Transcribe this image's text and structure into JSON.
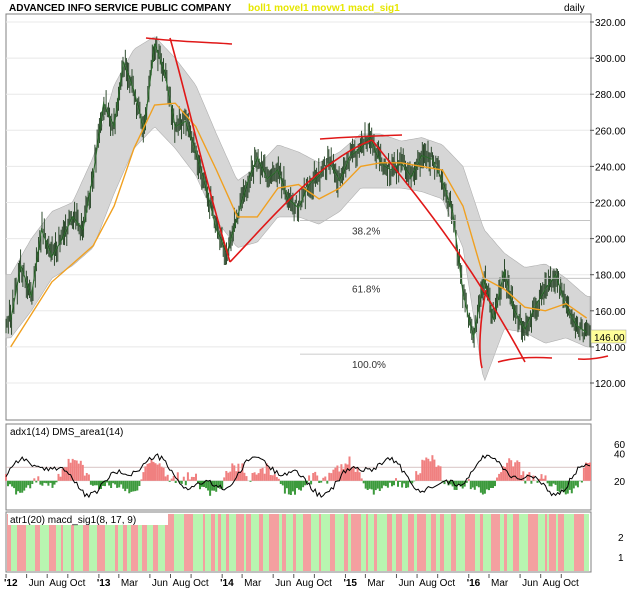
{
  "header": {
    "title": "ADVANCED INFO SERVICE PUBLIC COMPANY",
    "indicators": "boll1 movel1 movw1 macd_sig1",
    "timeframe": "daily"
  },
  "colors": {
    "price": "#1a3a1a",
    "band_fill": "#d6d6d6",
    "moving_average": "#f0a020",
    "annotation": "#e01818",
    "dms_positive": "#3c9a3c",
    "dms_negative": "#f08080",
    "adx": "#000000",
    "bar_green": "#b8f5b0",
    "bar_red": "#f4a0a0",
    "price_badge": "#ffff99"
  },
  "chart_data": [
    {
      "type": "line",
      "panel": "price",
      "title": "ADVANCED INFO SERVICE PUBLIC COMPANY",
      "x_ticks": [
        "'12",
        "Jun",
        "Aug",
        "Oct",
        "'13",
        "Mar",
        "Jun",
        "Aug",
        "Oct",
        "'14",
        "Mar",
        "Jun",
        "Aug",
        "Oct",
        "'15",
        "Mar",
        "Jun",
        "Aug",
        "Oct",
        "'16",
        "Mar",
        "Jun",
        "Aug",
        "Oct"
      ],
      "x_range": [
        "2012-04",
        "2016-12"
      ],
      "ylim": [
        110,
        325
      ],
      "y_ticks": [
        120,
        140,
        160,
        180,
        200,
        220,
        240,
        260,
        280,
        300,
        320
      ],
      "last_price": "146.00",
      "series": [
        {
          "name": "price",
          "x": [
            "2012-04",
            "2012-05",
            "2012-06",
            "2012-07",
            "2012-08",
            "2012-09",
            "2012-10",
            "2012-11",
            "2012-12",
            "2013-01",
            "2013-02",
            "2013-03",
            "2013-04",
            "2013-05",
            "2013-06",
            "2013-07",
            "2013-08",
            "2013-09",
            "2013-10",
            "2013-11",
            "2013-12",
            "2014-01",
            "2014-02",
            "2014-03",
            "2014-04",
            "2014-05",
            "2014-06",
            "2014-07",
            "2014-08",
            "2014-09",
            "2014-10",
            "2014-11",
            "2014-12",
            "2015-01",
            "2015-02",
            "2015-03",
            "2015-04",
            "2015-05",
            "2015-06",
            "2015-07",
            "2015-08",
            "2015-09",
            "2015-10",
            "2015-11",
            "2015-12",
            "2016-01",
            "2016-02",
            "2016-03",
            "2016-04",
            "2016-05",
            "2016-06",
            "2016-07",
            "2016-08",
            "2016-09",
            "2016-10",
            "2016-11",
            "2016-12"
          ],
          "values": [
            155,
            185,
            168,
            205,
            190,
            200,
            212,
            205,
            235,
            275,
            262,
            298,
            282,
            260,
            308,
            292,
            262,
            265,
            248,
            228,
            205,
            192,
            212,
            230,
            245,
            233,
            238,
            222,
            217,
            230,
            235,
            242,
            232,
            246,
            250,
            256,
            242,
            238,
            242,
            234,
            246,
            244,
            232,
            214,
            170,
            145,
            178,
            155,
            182,
            160,
            150,
            162,
            172,
            180,
            162,
            152,
            148
          ]
        },
        {
          "name": "moving average",
          "x": [
            "2012-04",
            "2012-06",
            "2012-08",
            "2012-10",
            "2012-12",
            "2013-02",
            "2013-04",
            "2013-06",
            "2013-08",
            "2013-10",
            "2013-12",
            "2014-02",
            "2014-04",
            "2014-06",
            "2014-08",
            "2014-10",
            "2014-12",
            "2015-02",
            "2015-04",
            "2015-06",
            "2015-08",
            "2015-10",
            "2015-12",
            "2016-02",
            "2016-04",
            "2016-06",
            "2016-08",
            "2016-10",
            "2016-12"
          ],
          "values": [
            140,
            158,
            176,
            186,
            196,
            218,
            250,
            274,
            275,
            262,
            238,
            212,
            212,
            228,
            230,
            222,
            228,
            240,
            242,
            242,
            240,
            238,
            218,
            178,
            172,
            162,
            160,
            164,
            156
          ]
        },
        {
          "name": "bollinger upper",
          "x": [
            "2012-04",
            "2012-06",
            "2012-08",
            "2012-10",
            "2012-12",
            "2013-02",
            "2013-04",
            "2013-06",
            "2013-08",
            "2013-10",
            "2013-12",
            "2014-02",
            "2014-04",
            "2014-06",
            "2014-08",
            "2014-10",
            "2014-12",
            "2015-02",
            "2015-04",
            "2015-06",
            "2015-08",
            "2015-10",
            "2015-12",
            "2016-02",
            "2016-04",
            "2016-06",
            "2016-08",
            "2016-10",
            "2016-12"
          ],
          "values": [
            180,
            200,
            215,
            220,
            245,
            285,
            305,
            312,
            300,
            285,
            258,
            232,
            240,
            252,
            248,
            242,
            248,
            258,
            258,
            254,
            256,
            252,
            240,
            205,
            192,
            184,
            186,
            178,
            168
          ]
        },
        {
          "name": "bollinger lower",
          "x": [
            "2012-04",
            "2012-06",
            "2012-08",
            "2012-10",
            "2012-12",
            "2013-02",
            "2013-04",
            "2013-06",
            "2013-08",
            "2013-10",
            "2013-12",
            "2014-02",
            "2014-04",
            "2014-06",
            "2014-08",
            "2014-10",
            "2014-12",
            "2015-02",
            "2015-04",
            "2015-06",
            "2015-08",
            "2015-10",
            "2015-12",
            "2016-02",
            "2016-04",
            "2016-06",
            "2016-08",
            "2016-10",
            "2016-12"
          ],
          "values": [
            145,
            160,
            178,
            185,
            195,
            225,
            250,
            262,
            250,
            235,
            210,
            195,
            198,
            212,
            212,
            208,
            215,
            228,
            228,
            228,
            226,
            222,
            195,
            120,
            150,
            148,
            142,
            145,
            140
          ]
        }
      ],
      "fibonacci_levels": [
        {
          "label": "38.2%",
          "value": 210
        },
        {
          "label": "61.8%",
          "value": 178
        },
        {
          "label": "100.0%",
          "value": 136
        }
      ]
    },
    {
      "type": "area",
      "panel": "adx",
      "title": "adx1(14) DMS_area1(14)",
      "ylim": [
        0,
        50
      ],
      "y_ticks": [
        20,
        40,
        60
      ],
      "reference_lines": [
        20,
        30
      ]
    },
    {
      "type": "bar",
      "panel": "atr",
      "title": "atr1(20) macd_sig1(8, 17, 9)",
      "y_ticks": [
        1,
        2
      ]
    }
  ]
}
